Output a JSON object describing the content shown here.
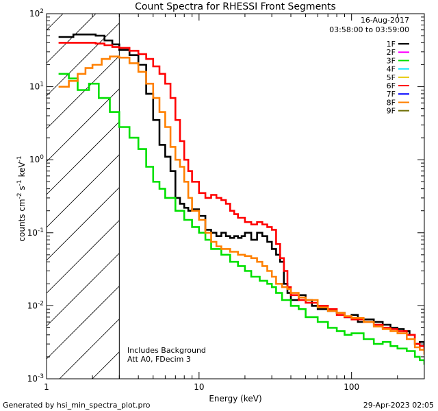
{
  "chart_data": {
    "type": "line",
    "title": "Count Spectra for RHESSI Front Segments",
    "xlabel": "Energy (keV)",
    "ylabel": "counts cm-2 s-1 keV-1",
    "xscale": "log",
    "yscale": "log",
    "xlim": [
      1,
      300
    ],
    "ylim": [
      0.001,
      100
    ],
    "x_ticks": [
      {
        "value": 1,
        "label": "1"
      },
      {
        "value": 10,
        "label": "10"
      },
      {
        "value": 100,
        "label": "100"
      }
    ],
    "y_ticks": [
      {
        "value": 100,
        "base": "10",
        "exp": "2"
      },
      {
        "value": 10,
        "base": "10",
        "exp": "1"
      },
      {
        "value": 1,
        "base": "10",
        "exp": "0"
      },
      {
        "value": 0.1,
        "base": "10",
        "exp": "-1"
      },
      {
        "value": 0.01,
        "base": "10",
        "exp": "-2"
      },
      {
        "value": 0.001,
        "base": "10",
        "exp": "-3"
      }
    ],
    "date": "16-Aug-2017",
    "time_range": "03:58:00 to 03:59:00",
    "shaded_below_energy": 3,
    "annotations": [
      "Includes Background",
      "Att A0, FDecim 3"
    ],
    "legend": [
      {
        "name": "1F",
        "color": "#000000"
      },
      {
        "name": "2F",
        "color": "#ff00ff"
      },
      {
        "name": "3F",
        "color": "#00e000"
      },
      {
        "name": "4F",
        "color": "#00e5ff"
      },
      {
        "name": "5F",
        "color": "#e6c800"
      },
      {
        "name": "6F",
        "color": "#ff0000"
      },
      {
        "name": "7F",
        "color": "#0000ff"
      },
      {
        "name": "8F",
        "color": "#ff8000"
      },
      {
        "name": "9F",
        "color": "#6b6b00"
      }
    ],
    "series": [
      {
        "name": "1F",
        "color": "#000000",
        "points": [
          [
            1.2,
            48
          ],
          [
            1.5,
            52
          ],
          [
            1.8,
            52
          ],
          [
            2.1,
            50
          ],
          [
            2.4,
            43
          ],
          [
            2.7,
            38
          ],
          [
            3.0,
            32
          ],
          [
            3.5,
            27
          ],
          [
            4.0,
            20
          ],
          [
            4.5,
            8
          ],
          [
            5.0,
            3.5
          ],
          [
            5.5,
            1.6
          ],
          [
            6.0,
            1.1
          ],
          [
            6.5,
            0.7
          ],
          [
            7.0,
            0.3
          ],
          [
            7.5,
            0.25
          ],
          [
            8.0,
            0.22
          ],
          [
            8.5,
            0.2
          ],
          [
            9.0,
            0.21
          ],
          [
            10,
            0.17
          ],
          [
            11,
            0.11
          ],
          [
            12,
            0.1
          ],
          [
            13,
            0.09
          ],
          [
            14,
            0.1
          ],
          [
            15,
            0.09
          ],
          [
            16,
            0.085
          ],
          [
            17,
            0.09
          ],
          [
            18,
            0.085
          ],
          [
            19,
            0.09
          ],
          [
            20,
            0.1
          ],
          [
            22,
            0.08
          ],
          [
            24,
            0.1
          ],
          [
            26,
            0.09
          ],
          [
            28,
            0.075
          ],
          [
            30,
            0.06
          ],
          [
            32,
            0.05
          ],
          [
            34,
            0.04
          ],
          [
            36,
            0.02
          ],
          [
            38,
            0.015
          ],
          [
            40,
            0.012
          ],
          [
            45,
            0.014
          ],
          [
            50,
            0.012
          ],
          [
            55,
            0.01
          ],
          [
            60,
            0.009
          ],
          [
            70,
            0.0085
          ],
          [
            80,
            0.008
          ],
          [
            90,
            0.007
          ],
          [
            100,
            0.0075
          ],
          [
            110,
            0.006
          ],
          [
            120,
            0.0065
          ],
          [
            140,
            0.006
          ],
          [
            160,
            0.0055
          ],
          [
            180,
            0.005
          ],
          [
            200,
            0.0048
          ],
          [
            220,
            0.0045
          ],
          [
            240,
            0.004
          ],
          [
            260,
            0.003
          ],
          [
            280,
            0.0032
          ],
          [
            300,
            0.0028
          ]
        ]
      },
      {
        "name": "3F",
        "color": "#00e000",
        "points": [
          [
            1.2,
            15
          ],
          [
            1.4,
            13
          ],
          [
            1.6,
            9
          ],
          [
            1.9,
            11
          ],
          [
            2.2,
            7
          ],
          [
            2.6,
            4.5
          ],
          [
            3.0,
            2.8
          ],
          [
            3.5,
            2.0
          ],
          [
            4.0,
            1.4
          ],
          [
            4.5,
            0.8
          ],
          [
            5.0,
            0.5
          ],
          [
            5.5,
            0.4
          ],
          [
            6.0,
            0.3
          ],
          [
            7.0,
            0.2
          ],
          [
            8.0,
            0.15
          ],
          [
            9.0,
            0.12
          ],
          [
            10,
            0.1
          ],
          [
            11,
            0.08
          ],
          [
            12,
            0.06
          ],
          [
            14,
            0.05
          ],
          [
            16,
            0.04
          ],
          [
            18,
            0.035
          ],
          [
            20,
            0.03
          ],
          [
            22,
            0.025
          ],
          [
            25,
            0.022
          ],
          [
            28,
            0.02
          ],
          [
            30,
            0.018
          ],
          [
            32,
            0.015
          ],
          [
            35,
            0.012
          ],
          [
            40,
            0.01
          ],
          [
            45,
            0.009
          ],
          [
            50,
            0.007
          ],
          [
            60,
            0.006
          ],
          [
            70,
            0.005
          ],
          [
            80,
            0.0045
          ],
          [
            90,
            0.004
          ],
          [
            100,
            0.0042
          ],
          [
            120,
            0.0035
          ],
          [
            140,
            0.003
          ],
          [
            160,
            0.0032
          ],
          [
            180,
            0.0028
          ],
          [
            200,
            0.0026
          ],
          [
            230,
            0.0024
          ],
          [
            260,
            0.002
          ],
          [
            280,
            0.0018
          ],
          [
            300,
            0.0016
          ]
        ]
      },
      {
        "name": "6F",
        "color": "#ff0000",
        "points": [
          [
            1.2,
            40
          ],
          [
            1.5,
            40
          ],
          [
            1.8,
            40
          ],
          [
            2.1,
            39
          ],
          [
            2.4,
            37
          ],
          [
            2.7,
            35
          ],
          [
            3.0,
            34
          ],
          [
            3.5,
            31
          ],
          [
            4.0,
            28
          ],
          [
            4.5,
            24
          ],
          [
            5.0,
            19
          ],
          [
            5.5,
            15
          ],
          [
            6.0,
            11
          ],
          [
            6.5,
            7
          ],
          [
            7.0,
            3.5
          ],
          [
            7.5,
            1.8
          ],
          [
            8.0,
            1.0
          ],
          [
            8.5,
            0.7
          ],
          [
            9.0,
            0.5
          ],
          [
            10,
            0.35
          ],
          [
            11,
            0.3
          ],
          [
            12,
            0.33
          ],
          [
            13,
            0.3
          ],
          [
            14,
            0.28
          ],
          [
            15,
            0.25
          ],
          [
            16,
            0.2
          ],
          [
            17,
            0.18
          ],
          [
            18,
            0.16
          ],
          [
            20,
            0.14
          ],
          [
            22,
            0.13
          ],
          [
            24,
            0.14
          ],
          [
            26,
            0.13
          ],
          [
            28,
            0.12
          ],
          [
            30,
            0.11
          ],
          [
            32,
            0.07
          ],
          [
            34,
            0.045
          ],
          [
            36,
            0.03
          ],
          [
            38,
            0.018
          ],
          [
            40,
            0.014
          ],
          [
            45,
            0.012
          ],
          [
            50,
            0.011
          ],
          [
            60,
            0.01
          ],
          [
            70,
            0.009
          ],
          [
            80,
            0.0075
          ],
          [
            90,
            0.007
          ],
          [
            100,
            0.0065
          ],
          [
            120,
            0.006
          ],
          [
            140,
            0.0055
          ],
          [
            160,
            0.005
          ],
          [
            180,
            0.0048
          ],
          [
            200,
            0.0045
          ],
          [
            230,
            0.004
          ],
          [
            260,
            0.003
          ],
          [
            280,
            0.0028
          ],
          [
            300,
            0.0025
          ]
        ]
      },
      {
        "name": "8F",
        "color": "#ff8000",
        "points": [
          [
            1.2,
            10
          ],
          [
            1.4,
            12
          ],
          [
            1.6,
            15
          ],
          [
            1.8,
            18
          ],
          [
            2.0,
            20
          ],
          [
            2.3,
            24
          ],
          [
            2.6,
            26
          ],
          [
            3.0,
            25
          ],
          [
            3.5,
            21
          ],
          [
            4.0,
            16
          ],
          [
            4.5,
            11
          ],
          [
            5.0,
            7
          ],
          [
            5.5,
            4.5
          ],
          [
            6.0,
            2.8
          ],
          [
            6.5,
            1.5
          ],
          [
            7.0,
            1.0
          ],
          [
            7.5,
            0.8
          ],
          [
            8.0,
            0.5
          ],
          [
            8.5,
            0.3
          ],
          [
            9.0,
            0.2
          ],
          [
            10,
            0.15
          ],
          [
            11,
            0.1
          ],
          [
            12,
            0.075
          ],
          [
            13,
            0.065
          ],
          [
            14,
            0.06
          ],
          [
            16,
            0.055
          ],
          [
            18,
            0.05
          ],
          [
            20,
            0.048
          ],
          [
            22,
            0.045
          ],
          [
            24,
            0.04
          ],
          [
            26,
            0.035
          ],
          [
            28,
            0.03
          ],
          [
            30,
            0.025
          ],
          [
            32,
            0.02
          ],
          [
            35,
            0.018
          ],
          [
            38,
            0.017
          ],
          [
            40,
            0.015
          ],
          [
            45,
            0.013
          ],
          [
            50,
            0.012
          ],
          [
            60,
            0.0095
          ],
          [
            70,
            0.0085
          ],
          [
            80,
            0.008
          ],
          [
            90,
            0.0072
          ],
          [
            100,
            0.0068
          ],
          [
            120,
            0.006
          ],
          [
            140,
            0.0052
          ],
          [
            160,
            0.0048
          ],
          [
            180,
            0.0045
          ],
          [
            200,
            0.0042
          ],
          [
            230,
            0.0035
          ],
          [
            260,
            0.0027
          ],
          [
            280,
            0.0025
          ],
          [
            300,
            0.0022
          ]
        ]
      }
    ]
  },
  "footer": {
    "left": "Generated by hsi_min_spectra_plot.pro",
    "right": "29-Apr-2023 02:05"
  }
}
